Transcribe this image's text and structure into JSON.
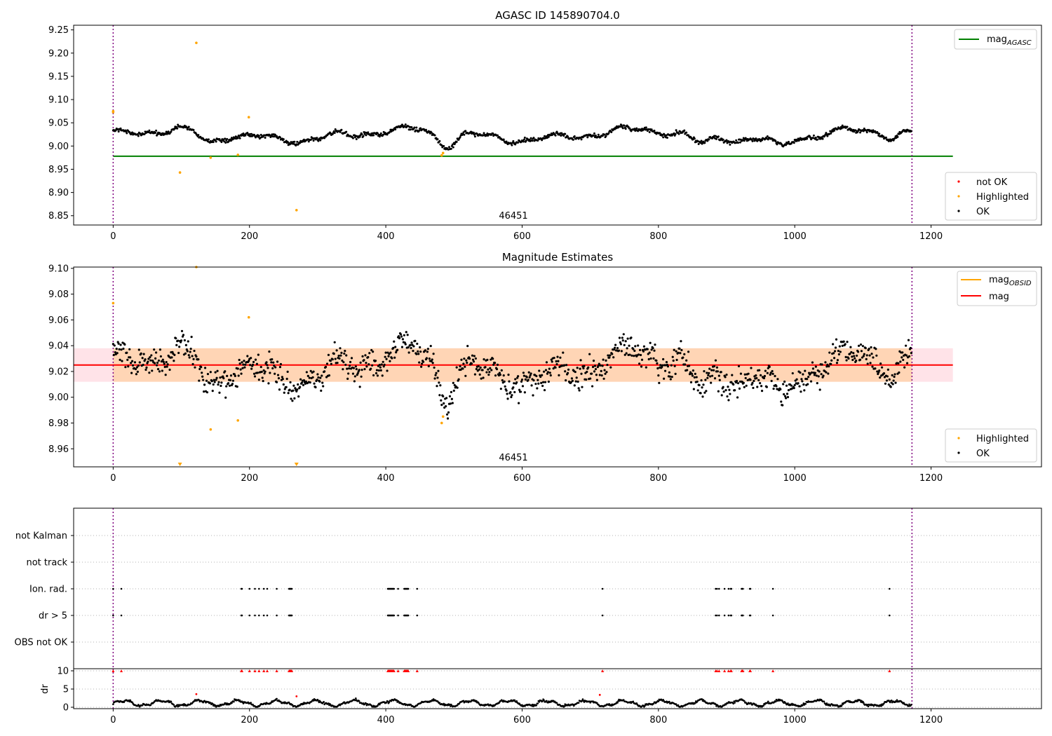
{
  "chart_data": [
    {
      "type": "scatter",
      "title": "AGASC ID 145890704.0",
      "xlim": [
        -58,
        1362
      ],
      "ylim": [
        8.83,
        9.26
      ],
      "xticks": [
        0,
        200,
        400,
        600,
        800,
        1000,
        1200
      ],
      "yticks": [
        8.85,
        8.9,
        8.95,
        9.0,
        9.05,
        9.1,
        9.15,
        9.2,
        9.25
      ],
      "ytick_labels": [
        "8.85",
        "8.90",
        "8.95",
        "9.00",
        "9.05",
        "9.10",
        "9.15",
        "9.20",
        "9.25"
      ],
      "annotation": "46451",
      "obs_boundaries": [
        0,
        1172
      ],
      "reference_line": {
        "y": 8.978,
        "x": [
          0,
          1232
        ],
        "color": "#008000"
      },
      "ok_series": {
        "name": "OK",
        "color": "#000000",
        "n": 1172,
        "x_range": [
          0,
          1171
        ],
        "baseline": 9.024
      },
      "highlighted": {
        "name": "Highlighted",
        "color": "#ffa500",
        "points": [
          [
            0,
            9.073
          ],
          [
            0,
            9.075
          ],
          [
            98,
            8.943
          ],
          [
            122,
            9.222
          ],
          [
            143,
            8.975
          ],
          [
            183,
            8.981
          ],
          [
            199,
            9.062
          ],
          [
            269,
            8.862
          ],
          [
            482,
            8.98
          ],
          [
            484,
            8.985
          ]
        ]
      },
      "legend_upper": {
        "label": "mag",
        "subscript": "AGASC",
        "color": "#008000",
        "placement": "upper right"
      },
      "legend_lower": [
        {
          "label": "not OK",
          "color": "#ff0000"
        },
        {
          "label": "Highlighted",
          "color": "#ffa500"
        },
        {
          "label": "OK",
          "color": "#000000"
        }
      ]
    },
    {
      "type": "scatter",
      "title": "Magnitude Estimates",
      "xlim": [
        -58,
        1362
      ],
      "ylim": [
        8.946,
        9.101
      ],
      "xticks": [
        0,
        200,
        400,
        600,
        800,
        1000,
        1200
      ],
      "yticks": [
        8.96,
        8.98,
        9.0,
        9.02,
        9.04,
        9.06,
        9.08,
        9.1
      ],
      "ytick_labels": [
        "8.96",
        "8.98",
        "9.00",
        "9.02",
        "9.04",
        "9.06",
        "9.08",
        "9.10"
      ],
      "annotation": "46451",
      "obs_boundaries": [
        0,
        1172
      ],
      "mag_line": {
        "y": 9.025,
        "color": "#ff0000"
      },
      "band": {
        "y": [
          9.012,
          9.038
        ],
        "x": [
          -58,
          1232
        ]
      },
      "band_obs": {
        "y": [
          9.012,
          9.038
        ],
        "x": [
          0,
          1172
        ]
      },
      "highlighted": {
        "name": "Highlighted",
        "color": "#ffa500",
        "points": [
          [
            0,
            9.073
          ],
          [
            122,
            9.101
          ],
          [
            143,
            8.975
          ],
          [
            183,
            8.982
          ],
          [
            199,
            9.062
          ],
          [
            482,
            8.98
          ],
          [
            484,
            8.985
          ]
        ],
        "markers_below": [
          98,
          269
        ]
      },
      "legend_upper": [
        {
          "label": "mag",
          "subscript": "OBSID",
          "color": "#ffa500"
        },
        {
          "label": "mag",
          "subscript": "",
          "color": "#ff0000"
        }
      ],
      "legend_lower": [
        {
          "label": "Highlighted",
          "color": "#ffa500"
        },
        {
          "label": "OK",
          "color": "#000000"
        }
      ]
    },
    {
      "type": "scatter",
      "title": "",
      "xlim": [
        -58,
        1362
      ],
      "flag_rows": [
        "not Kalman",
        "not track",
        "Ion. rad.",
        "dr > 5",
        "OBS not OK"
      ],
      "flag_times": [
        0,
        12,
        188,
        189,
        200,
        208,
        214,
        221,
        226,
        240,
        258,
        259,
        260,
        261,
        262,
        403,
        404,
        405,
        406,
        407,
        408,
        409,
        410,
        411,
        412,
        418,
        427,
        428,
        429,
        430,
        431,
        432,
        433,
        446,
        718,
        884,
        886,
        889,
        897,
        903,
        906,
        907,
        922,
        923,
        924,
        934,
        935,
        968,
        1139
      ],
      "flagged_rows": [
        "Ion. rad.",
        "dr > 5"
      ]
    },
    {
      "type": "line",
      "title": "",
      "ylabel": "dr",
      "xlim": [
        -58,
        1362
      ],
      "ylim": [
        0,
        10
      ],
      "yticks": [
        0,
        5,
        10
      ],
      "ytick_labels": [
        "0",
        "5",
        "10"
      ],
      "xticks": [
        0,
        200,
        400,
        600,
        800,
        1000,
        1200
      ],
      "clipped_value": 10,
      "outliers": [
        [
          122,
          3.6
        ],
        [
          269,
          3.0
        ],
        [
          714,
          3.4
        ]
      ],
      "ok_color": "#000000",
      "flag_color": "#ff0000"
    }
  ]
}
